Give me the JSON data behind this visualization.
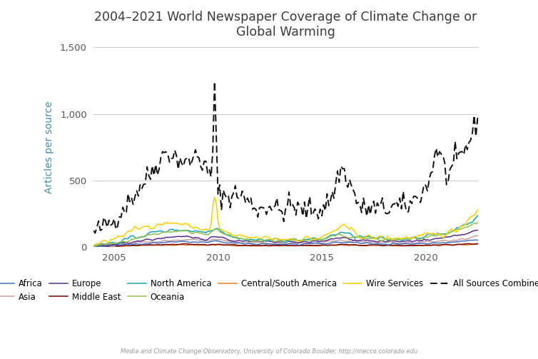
{
  "title_line1": "2004–2021 World Newspaper Coverage of Climate Change or",
  "title_line2": "Global Warming",
  "ylabel": "Articles per source",
  "footnote": "Media and Climate Change Observatory, University of Colorado Boulder, http://mecco.colorado.edu",
  "ylim": [
    0,
    1500
  ],
  "yticks": [
    0,
    500,
    1000,
    1500
  ],
  "ytick_labels": [
    "0",
    "500",
    "1,000",
    "1,500"
  ],
  "xtick_years": [
    2005,
    2010,
    2015,
    2020
  ],
  "title_color": "#3a3a3a",
  "ylabel_color": "#4a8fa8",
  "footnote_color": "#999999",
  "series_colors": {
    "Africa": "#4472c4",
    "Asia": "#c9a0a0",
    "Europe": "#5b2d8e",
    "Middle East": "#7b0000",
    "North America": "#17a5b8",
    "Oceania": "#92c050",
    "Central/South America": "#e67e22",
    "Wire Services": "#f5d000",
    "All Sources Combined": "#111111"
  },
  "background_color": "#ffffff",
  "grid_color": "#cccccc",
  "xlim": [
    2004.0,
    2022.5
  ]
}
